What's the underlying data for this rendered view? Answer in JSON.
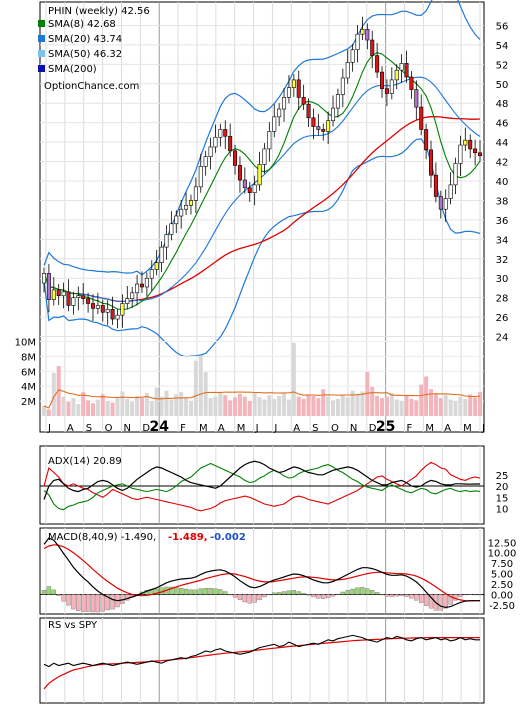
{
  "chart_data": [
    {
      "type": "candlestick",
      "panel": "price",
      "title": "PHIN (weekly) 42.56",
      "watermark": "OptionChance.com",
      "legend": [
        {
          "label": "SMA(8) 42.68",
          "color": "#008000"
        },
        {
          "label": "SMA(20) 43.74",
          "color": "#1e78d8"
        },
        {
          "label": "SMA(50) 46.32",
          "color": "#7ec3ee"
        },
        {
          "label": "SMA(200)",
          "color": "#1010b0"
        }
      ],
      "ylim": [
        22,
        58
      ],
      "yticks": [
        24,
        26,
        28,
        30,
        32,
        34,
        36,
        38,
        40,
        42,
        44,
        46,
        48,
        50,
        52,
        54,
        56
      ],
      "x_labels": [
        "J",
        "A",
        "S",
        "O",
        "N",
        "D",
        "24",
        "F",
        "M",
        "A",
        "M",
        "J",
        "J",
        "A",
        "S",
        "O",
        "N",
        "D",
        "25",
        "F",
        "M",
        "A",
        "M",
        "J"
      ],
      "close": [
        30.5,
        27.8,
        28.8,
        28.2,
        28.6,
        27.2,
        28.0,
        28.2,
        27.9,
        27.4,
        26.9,
        27.2,
        26.5,
        26.8,
        25.8,
        26.2,
        27.4,
        27.9,
        28.5,
        29.4,
        29.1,
        30.0,
        30.9,
        31.6,
        33.2,
        34.5,
        35.6,
        36.4,
        37.1,
        37.5,
        38.0,
        39.4,
        41.5,
        42.5,
        43.5,
        44.5,
        45.3,
        44.6,
        43.1,
        41.6,
        40.1,
        39.3,
        38.8,
        39.6,
        41.7,
        43.3,
        45.1,
        46.6,
        47.4,
        48.6,
        49.6,
        50.4,
        48.6,
        47.9,
        46.5,
        45.6,
        45.3,
        45.1,
        46.2,
        47.5,
        48.9,
        50.6,
        52.2,
        53.5,
        55.1,
        55.6,
        54.5,
        52.9,
        51.2,
        49.5,
        49.0,
        50.4,
        51.4,
        52.1,
        50.7,
        49.4,
        47.6,
        45.3,
        43.2,
        40.6,
        38.4,
        37.1,
        38.2,
        39.6,
        41.8,
        43.7,
        44.2,
        43.3,
        42.9,
        42.6
      ],
      "sma8_last": 42.68,
      "sma20_last": 43.74,
      "sma50_last": 46.32
    },
    {
      "type": "bar",
      "panel": "volume",
      "yticks": [
        "10M",
        "8M",
        "6M",
        "4M",
        "2M"
      ],
      "ylim": [
        0,
        11000000
      ],
      "values": [
        1.4,
        0.9,
        5.8,
        6.7,
        2.6,
        1.9,
        2.4,
        1.6,
        3.2,
        2.1,
        1.7,
        2.2,
        2.9,
        2.0,
        1.8,
        2.6,
        3.3,
        2.3,
        1.9,
        2.7,
        2.4,
        3.1,
        2.0,
        3.8,
        2.6,
        3.4,
        2.2,
        2.9,
        3.2,
        2.5,
        2.0,
        7.4,
        8.1,
        5.9,
        2.4,
        2.6,
        3.2,
        2.8,
        2.1,
        2.5,
        3.0,
        2.6,
        2.0,
        3.1,
        2.5,
        2.2,
        2.8,
        2.3,
        2.7,
        3.0,
        2.2,
        9.8,
        2.6,
        2.3,
        2.9,
        2.7,
        2.4,
        3.6,
        2.6,
        2.1,
        2.3,
        2.8,
        2.5,
        3.4,
        2.9,
        3.3,
        5.9,
        3.9,
        2.7,
        2.4,
        2.6,
        3.1,
        2.2,
        2.0,
        2.7,
        2.3,
        2.1,
        4.2,
        5.3,
        3.6,
        3.0,
        2.4,
        2.8,
        2.2,
        2.0,
        2.6,
        2.3,
        2.9,
        2.5,
        3.2
      ]
    },
    {
      "type": "line",
      "panel": "adx",
      "label": "ADX(14) 20.89",
      "yticks": [
        10,
        15,
        20,
        25
      ],
      "ylim": [
        4,
        36
      ],
      "adx": [
        14.0,
        20.0,
        22.5,
        23.0,
        21.0,
        19.0,
        18.0,
        17.5,
        18.5,
        19.0,
        20.5,
        22.0,
        22.5,
        22.0,
        20.5,
        19.0,
        18.0,
        19.0,
        21.0,
        23.0,
        24.5,
        26.0,
        27.5,
        28.5,
        28.0,
        27.0,
        26.0,
        25.0,
        24.0,
        22.5,
        21.5,
        21.0,
        20.5,
        20.0,
        19.5,
        19.0,
        20.0,
        22.0,
        24.0,
        26.0,
        28.0,
        29.5,
        30.5,
        31.0,
        30.5,
        29.5,
        28.0,
        27.0,
        26.0,
        26.5,
        27.5,
        28.5,
        28.0,
        27.0,
        26.0,
        25.5,
        25.0,
        25.0,
        26.0,
        27.0,
        27.5,
        28.0,
        28.5,
        28.0,
        27.0,
        25.5,
        24.0,
        22.5,
        21.5,
        20.5,
        20.5,
        21.5,
        22.0,
        22.5,
        21.5,
        20.0,
        19.5,
        20.0,
        21.5,
        22.5,
        22.0,
        21.0,
        20.5,
        20.5,
        21.0,
        21.0,
        20.9,
        20.8,
        20.9,
        20.89
      ],
      "plus_di": [
        18.0,
        16.0,
        12.0,
        10.0,
        9.5,
        11.0,
        11.5,
        12.5,
        13.0,
        13.5,
        15.0,
        17.0,
        18.0,
        19.0,
        20.0,
        20.5,
        21.0,
        20.0,
        19.0,
        18.5,
        18.0,
        17.5,
        18.0,
        18.5,
        18.0,
        17.5,
        18.5,
        20.0,
        22.0,
        23.0,
        24.0,
        26.0,
        28.0,
        29.0,
        30.0,
        29.0,
        28.0,
        27.0,
        26.0,
        25.0,
        24.0,
        22.5,
        21.5,
        22.0,
        23.5,
        24.5,
        26.0,
        27.0,
        26.0,
        24.5,
        23.5,
        24.0,
        25.5,
        26.5,
        27.0,
        27.5,
        28.0,
        29.0,
        29.5,
        28.5,
        27.0,
        26.0,
        24.5,
        23.0,
        22.0,
        20.5,
        19.5,
        19.0,
        18.5,
        18.0,
        19.5,
        20.5,
        19.5,
        18.5,
        17.5,
        17.0,
        18.0,
        19.0,
        18.5,
        17.0,
        16.5,
        17.5,
        18.5,
        19.0,
        18.0,
        17.5,
        18.0,
        17.5,
        17.8,
        17.6
      ],
      "minus_di": [
        20.0,
        28.0,
        26.0,
        24.0,
        21.0,
        20.0,
        21.0,
        20.0,
        19.0,
        18.5,
        17.0,
        16.0,
        15.0,
        16.5,
        18.5,
        17.5,
        16.5,
        15.5,
        14.5,
        14.0,
        14.5,
        15.0,
        14.5,
        14.0,
        13.5,
        13.0,
        12.5,
        12.0,
        11.5,
        11.0,
        10.5,
        9.5,
        9.0,
        9.5,
        10.0,
        11.0,
        12.5,
        13.5,
        14.0,
        14.5,
        15.0,
        15.5,
        15.0,
        14.0,
        13.0,
        12.0,
        11.5,
        11.0,
        11.5,
        12.0,
        13.5,
        15.0,
        15.5,
        15.0,
        14.0,
        13.5,
        13.0,
        12.5,
        12.0,
        13.0,
        14.0,
        15.0,
        16.0,
        17.0,
        18.0,
        19.5,
        21.0,
        22.5,
        24.0,
        24.5,
        23.0,
        22.0,
        21.0,
        20.0,
        21.5,
        23.0,
        24.5,
        27.0,
        29.0,
        30.5,
        29.5,
        28.0,
        27.5,
        25.0,
        24.0,
        23.0,
        22.5,
        23.5,
        24.0,
        23.5
      ]
    },
    {
      "type": "line",
      "panel": "macd",
      "label": "MACD(8,40,9) -1.490,",
      "signal_text": "-1.489,",
      "hist_text": "-0.002",
      "yticks": [
        12.5,
        10.0,
        7.5,
        5.0,
        2.5,
        0.0,
        -2.5
      ],
      "ytick_labels": [
        "12.50",
        "10.00",
        "7.50",
        "5.00",
        "2.50",
        "0.00",
        "-2.50"
      ],
      "ylim": [
        -4.2,
        15.2
      ],
      "macd": [
        12.0,
        13.5,
        13.0,
        11.5,
        9.8,
        8.2,
        6.5,
        5.2,
        4.0,
        3.0,
        1.8,
        0.8,
        0.0,
        -0.6,
        -1.2,
        -1.5,
        -1.3,
        -1.0,
        -0.6,
        -0.2,
        0.3,
        0.8,
        1.2,
        1.6,
        2.2,
        2.8,
        3.2,
        3.5,
        3.7,
        3.8,
        3.9,
        4.2,
        4.8,
        5.3,
        5.6,
        5.8,
        5.9,
        5.6,
        5.0,
        4.2,
        3.3,
        2.5,
        1.8,
        1.6,
        1.9,
        2.4,
        3.0,
        3.5,
        3.8,
        4.2,
        4.6,
        4.9,
        4.8,
        4.5,
        4.0,
        3.5,
        3.1,
        2.8,
        2.8,
        3.1,
        3.6,
        4.2,
        4.8,
        5.4,
        6.0,
        6.4,
        6.4,
        6.2,
        5.8,
        5.3,
        4.8,
        4.6,
        4.6,
        4.7,
        4.4,
        3.8,
        3.0,
        1.9,
        0.6,
        -0.7,
        -2.0,
        -2.8,
        -3.1,
        -2.9,
        -2.4,
        -1.9,
        -1.6,
        -1.5,
        -1.5,
        -1.49
      ],
      "signal": [
        11.0,
        11.6,
        11.9,
        11.8,
        11.4,
        10.8,
        10.0,
        9.1,
        8.1,
        7.1,
        6.0,
        5.0,
        4.0,
        3.1,
        2.3,
        1.5,
        0.9,
        0.4,
        0.0,
        -0.2,
        -0.3,
        -0.2,
        0.0,
        0.3,
        0.6,
        1.0,
        1.4,
        1.8,
        2.2,
        2.5,
        2.8,
        3.1,
        3.4,
        3.8,
        4.1,
        4.4,
        4.7,
        4.9,
        5.0,
        4.9,
        4.6,
        4.3,
        3.9,
        3.5,
        3.2,
        3.0,
        3.0,
        3.1,
        3.3,
        3.5,
        3.7,
        3.9,
        4.1,
        4.2,
        4.2,
        4.1,
        4.0,
        3.8,
        3.6,
        3.5,
        3.5,
        3.6,
        3.8,
        4.1,
        4.4,
        4.7,
        5.0,
        5.2,
        5.3,
        5.3,
        5.2,
        5.1,
        5.0,
        5.0,
        4.9,
        4.7,
        4.4,
        3.9,
        3.3,
        2.6,
        1.8,
        1.0,
        0.2,
        -0.5,
        -1.0,
        -1.3,
        -1.5,
        -1.55,
        -1.5,
        -1.489
      ]
    },
    {
      "type": "line",
      "panel": "rs",
      "label": "RS vs SPY",
      "rs": [
        62,
        60,
        63,
        61,
        62,
        63,
        61,
        62,
        63,
        62,
        61,
        62,
        63,
        62,
        61,
        62,
        63,
        64,
        63,
        62,
        63,
        64,
        65,
        64,
        63,
        65,
        66,
        67,
        68,
        67,
        69,
        70,
        72,
        74,
        73,
        75,
        76,
        74,
        73,
        72,
        71,
        72,
        73,
        75,
        77,
        78,
        79,
        80,
        78,
        79,
        82,
        80,
        78,
        79,
        80,
        81,
        80,
        82,
        84,
        83,
        85,
        86,
        87,
        88,
        87,
        86,
        84,
        83,
        82,
        84,
        86,
        85,
        87,
        86,
        84,
        83,
        85,
        86,
        84,
        85,
        86,
        84,
        85,
        83,
        84,
        86,
        84,
        85,
        84,
        84
      ],
      "rs_ma": [
        40,
        45,
        48,
        51,
        53,
        55,
        57,
        58,
        59,
        60,
        61,
        61.5,
        62,
        62.3,
        62.5,
        62.7,
        63,
        63.3,
        63.5,
        63.7,
        64,
        64.3,
        64.6,
        65,
        65.3,
        65.7,
        66,
        66.5,
        67,
        67.5,
        68,
        68.6,
        69.2,
        69.8,
        70.4,
        71,
        71.5,
        72,
        72.4,
        72.8,
        73.2,
        73.6,
        74,
        74.5,
        75,
        75.5,
        76,
        76.5,
        77,
        77.5,
        78,
        78.4,
        78.8,
        79.2,
        79.6,
        80,
        80.4,
        80.8,
        81.2,
        81.6,
        82,
        82.4,
        82.8,
        83.2,
        83.5,
        83.8,
        84,
        84.2,
        84.4,
        84.6,
        84.8,
        85,
        85.2,
        85.4,
        85.5,
        85.6,
        85.7,
        85.8,
        85.9,
        86,
        86,
        86,
        86,
        86,
        86,
        86,
        86,
        86,
        86,
        86
      ]
    }
  ]
}
